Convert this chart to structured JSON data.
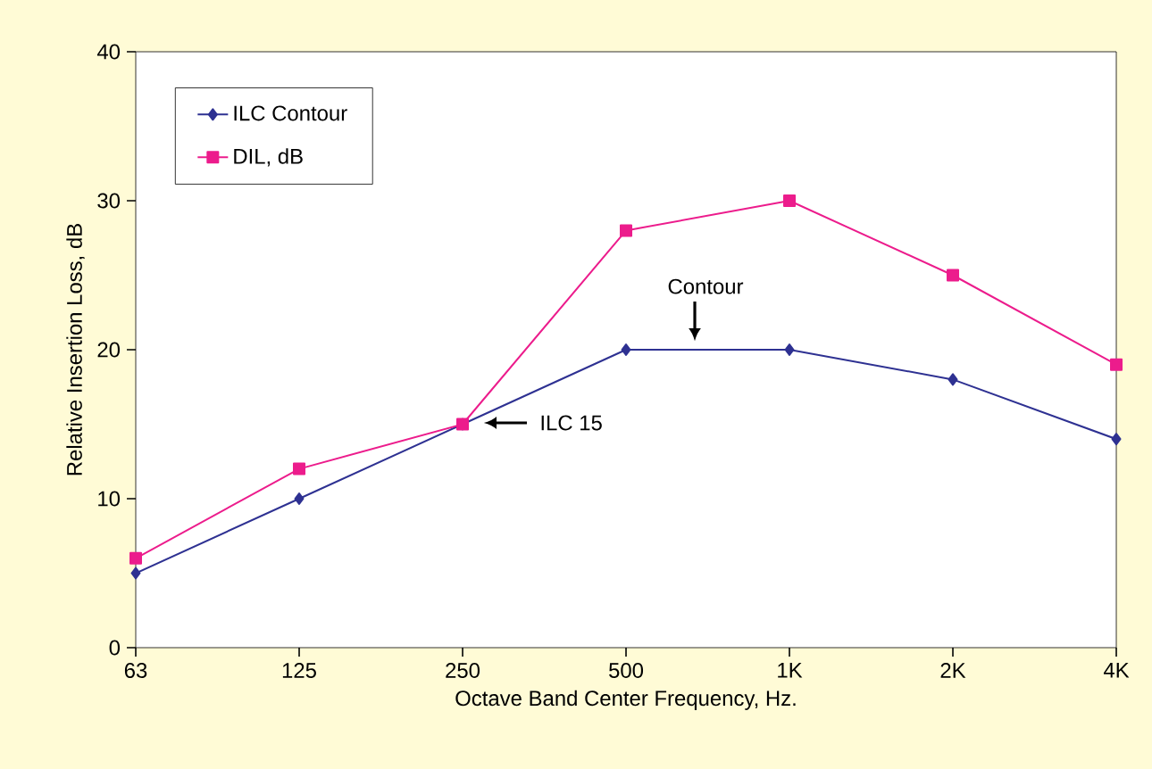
{
  "chart_data": {
    "type": "line",
    "xlabel": "Octave Band Center Frequency, Hz.",
    "ylabel": "Relative Insertion Loss, dB",
    "categories": [
      "63",
      "125",
      "250",
      "500",
      "1K",
      "2K",
      "4K"
    ],
    "series": [
      {
        "name": "ILC Contour",
        "color": "#2e3192",
        "marker": "diamond",
        "values": [
          5,
          10,
          15,
          20,
          20,
          18,
          14
        ]
      },
      {
        "name": "DIL, dB",
        "color": "#ec1c8c",
        "marker": "square",
        "values": [
          6,
          12,
          15,
          28,
          30,
          25,
          19
        ]
      }
    ],
    "ylim": [
      0,
      40
    ],
    "yticks": [
      0,
      10,
      20,
      30,
      40
    ],
    "grid": false,
    "legend": "top left",
    "annotations": [
      "Contour",
      "ILC 15"
    ]
  }
}
